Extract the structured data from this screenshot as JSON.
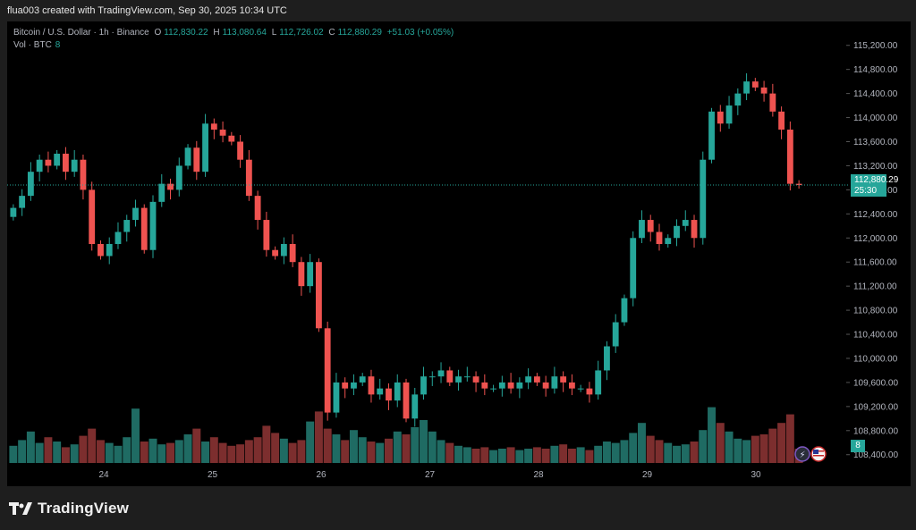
{
  "header": {
    "credit": "flua003 created with TradingView.com, Sep 30, 2025 10:34 UTC"
  },
  "legend": {
    "symbol": "Bitcoin / U.S. Dollar · 1h · Binance",
    "open_label": "O",
    "open": "112,830.22",
    "high_label": "H",
    "high": "113,080.64",
    "low_label": "L",
    "low": "112,726.02",
    "close_label": "C",
    "close": "112,880.29",
    "change": "+51.03 (+0.05%)",
    "vol_label": "Vol · BTC",
    "vol_value": "8"
  },
  "price_tag": {
    "price": "112,880.29",
    "countdown": "25:30"
  },
  "vol_tag": "8",
  "brand": {
    "name": "TradingView"
  },
  "colors": {
    "up": "#26a69a",
    "down": "#ef5350",
    "vol_up": "#1f6b63",
    "vol_down": "#7c2e2e",
    "background": "#000000"
  },
  "icons": [
    "flash-icon",
    "us-flag-icon"
  ],
  "chart_data": {
    "type": "candlestick",
    "title": "Bitcoin / U.S. Dollar · 1h · Binance",
    "xlabel": "",
    "ylabel": "",
    "ylim": [
      108500,
      115300
    ],
    "y_ticks": [
      "115,200.00",
      "114,800.00",
      "114,400.00",
      "114,000.00",
      "113,600.00",
      "113,200.00",
      "112,800.00",
      "112,400.00",
      "112,000.00",
      "111,600.00",
      "111,200.00",
      "110,800.00",
      "110,400.00",
      "110,000.00",
      "109,600.00",
      "109,200.00",
      "108,800.00",
      "108,400.00"
    ],
    "x_ticks": [
      "24",
      "25",
      "26",
      "27",
      "28",
      "29",
      "30"
    ],
    "last_price": 112880.29,
    "grid": false,
    "price_path": [
      112500,
      112700,
      113100,
      113300,
      113200,
      113400,
      113100,
      113300,
      112800,
      111900,
      111700,
      111900,
      112100,
      112300,
      112500,
      111800,
      112600,
      112900,
      112800,
      113200,
      113500,
      113100,
      113900,
      113800,
      113700,
      113600,
      113300,
      112700,
      112300,
      111800,
      111700,
      111900,
      111600,
      111200,
      111600,
      110500,
      109100,
      109600,
      109500,
      109600,
      109700,
      109400,
      109500,
      109300,
      109600,
      109000,
      109400,
      109700,
      109700,
      109800,
      109600,
      109700,
      109700,
      109600,
      109500,
      109500,
      109600,
      109500,
      109600,
      109700,
      109600,
      109500,
      109700,
      109600,
      109500,
      109500,
      109400,
      109800,
      110200,
      110600,
      111000,
      112000,
      112300,
      112100,
      111900,
      112000,
      112200,
      112300,
      112000,
      113300,
      114100,
      113900,
      114200,
      114400,
      114600,
      114500,
      114400,
      114100,
      113800,
      112900,
      112880
    ],
    "volume_path": [
      1.2,
      1.6,
      2.2,
      1.4,
      1.8,
      1.5,
      1.1,
      1.3,
      1.9,
      2.4,
      1.6,
      1.4,
      1.2,
      1.8,
      3.8,
      1.5,
      1.7,
      1.3,
      1.4,
      1.6,
      2.0,
      2.4,
      1.5,
      1.8,
      1.4,
      1.2,
      1.3,
      1.6,
      1.8,
      2.6,
      2.1,
      1.7,
      1.4,
      1.6,
      2.9,
      3.6,
      2.4,
      2.0,
      1.6,
      2.3,
      1.8,
      1.5,
      1.4,
      1.7,
      2.2,
      2.0,
      2.5,
      3.0,
      2.2,
      1.6,
      1.4,
      1.2,
      1.1,
      1.0,
      1.1,
      0.9,
      1.0,
      1.1,
      0.9,
      1.0,
      1.1,
      1.0,
      1.2,
      1.3,
      1.0,
      1.1,
      0.9,
      1.2,
      1.5,
      1.4,
      1.6,
      2.1,
      2.8,
      1.9,
      1.6,
      1.4,
      1.2,
      1.3,
      1.5,
      2.3,
      3.9,
      2.8,
      2.2,
      1.7,
      1.6,
      1.9,
      2.0,
      2.4,
      2.8,
      3.4,
      1.0
    ]
  }
}
